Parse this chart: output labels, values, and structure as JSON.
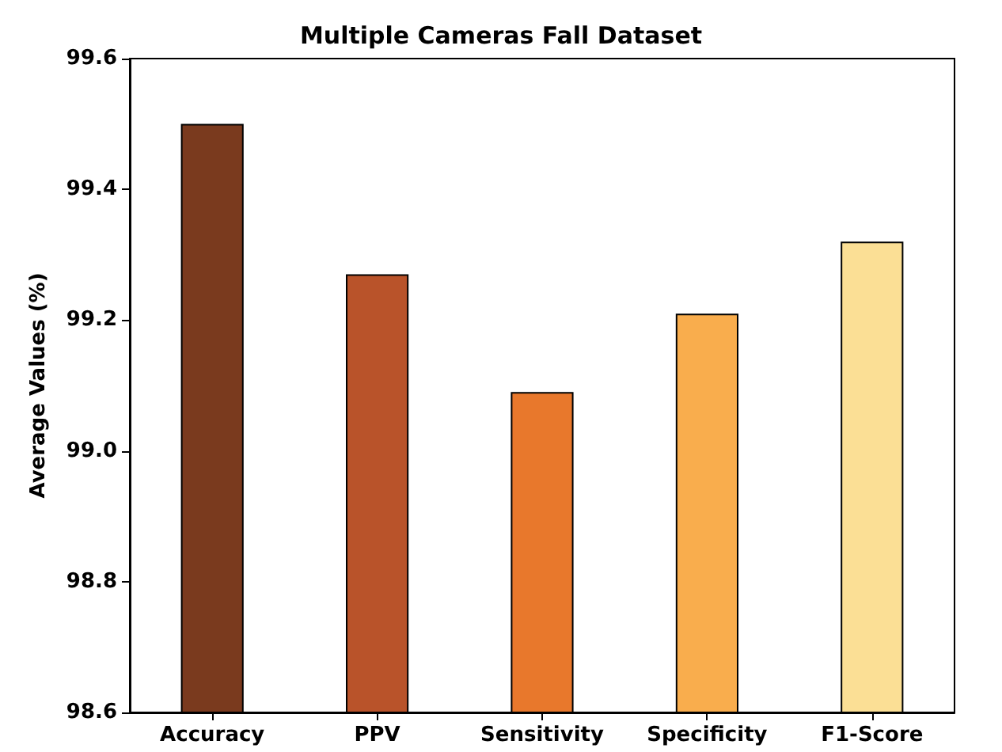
{
  "chart_data": {
    "type": "bar",
    "title": "Multiple Cameras Fall Dataset",
    "ylabel": "Average Values (%)",
    "categories": [
      "Accuracy",
      "PPV",
      "Sensitivity",
      "Specificity",
      "F1-Score"
    ],
    "values": [
      99.5,
      99.27,
      99.09,
      99.21,
      99.32
    ],
    "colors": [
      "#7a3a1e",
      "#b9532a",
      "#e8782c",
      "#f9ad4d",
      "#fbdf95"
    ],
    "ylim": [
      98.6,
      99.6
    ],
    "yticks": [
      {
        "value": 98.6,
        "label": "98.6"
      },
      {
        "value": 98.8,
        "label": "98.8"
      },
      {
        "value": 99,
        "label": "99.0"
      },
      {
        "value": 99.2,
        "label": "99.2"
      },
      {
        "value": 99.4,
        "label": "99.4"
      },
      {
        "value": 99.6,
        "label": "99.6"
      }
    ],
    "grid": false
  }
}
